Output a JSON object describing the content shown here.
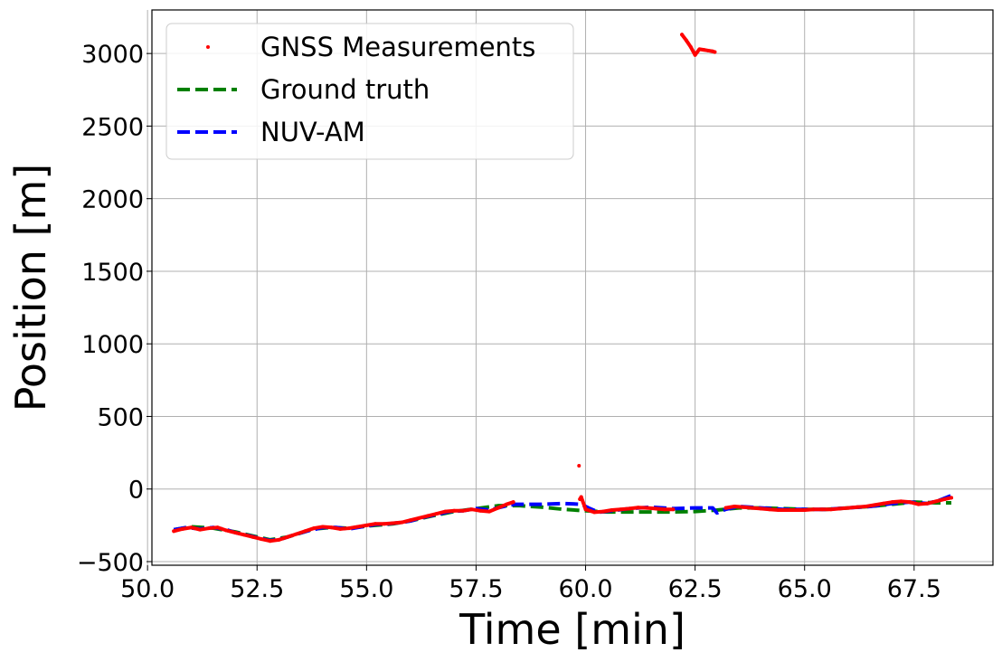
{
  "chart_data": {
    "type": "line",
    "title": "",
    "xlabel": "Time [min]",
    "ylabel": "Position [m]",
    "xlim": [
      50.1,
      69.3
    ],
    "ylim": [
      -525,
      3300
    ],
    "xticks": [
      50.0,
      52.5,
      55.0,
      57.5,
      60.0,
      62.5,
      65.0,
      67.5
    ],
    "xtick_labels": [
      "50.0",
      "52.5",
      "55.0",
      "57.5",
      "60.0",
      "62.5",
      "65.0",
      "67.5"
    ],
    "yticks": [
      -500,
      0,
      500,
      1000,
      1500,
      2000,
      2500,
      3000
    ],
    "ytick_labels": [
      "−500",
      "0",
      "500",
      "1000",
      "1500",
      "2000",
      "2500",
      "3000"
    ],
    "grid": true,
    "legend_position": "top-left",
    "series": [
      {
        "name": "GNSS Measurements",
        "style": "points",
        "color": "#ff0000",
        "x": [
          50.6,
          50.8,
          51.0,
          51.2,
          51.4,
          51.6,
          51.8,
          52.0,
          52.2,
          52.4,
          52.6,
          52.8,
          53.0,
          53.2,
          53.4,
          53.6,
          53.8,
          54.0,
          54.2,
          54.4,
          54.6,
          54.8,
          55.0,
          55.2,
          55.4,
          55.6,
          55.8,
          56.0,
          56.2,
          56.4,
          56.6,
          56.8,
          57.0,
          57.2,
          57.4,
          57.6,
          57.8,
          58.0,
          58.2,
          58.35,
          59.85,
          59.87,
          59.9,
          60.0,
          60.2,
          60.4,
          60.6,
          60.8,
          61.0,
          61.2,
          61.4,
          61.6,
          61.8,
          62.0,
          62.2,
          62.3,
          62.4,
          62.5,
          62.6,
          62.7,
          62.8,
          62.9,
          62.95,
          63.2,
          63.4,
          63.6,
          63.8,
          64.0,
          64.2,
          64.4,
          64.6,
          64.8,
          65.0,
          65.2,
          65.4,
          65.6,
          65.8,
          66.0,
          66.2,
          66.4,
          66.6,
          66.8,
          67.0,
          67.2,
          67.4,
          67.6,
          67.8,
          68.0,
          68.2,
          68.35
        ],
        "y": [
          -290,
          -275,
          -265,
          -280,
          -270,
          -265,
          -285,
          -300,
          -315,
          -330,
          -345,
          -358,
          -350,
          -330,
          -310,
          -290,
          -270,
          -260,
          -265,
          -275,
          -270,
          -260,
          -250,
          -240,
          -240,
          -235,
          -230,
          -215,
          -200,
          -185,
          -170,
          -155,
          -150,
          -150,
          -140,
          -150,
          -155,
          -130,
          -105,
          -90,
          160,
          -70,
          -55,
          -140,
          -160,
          -155,
          -145,
          -140,
          -135,
          -128,
          -130,
          -135,
          -140,
          -140,
          3130,
          3090,
          3045,
          2990,
          3030,
          3025,
          3020,
          3015,
          3010,
          -130,
          -120,
          -125,
          -130,
          -135,
          -140,
          -145,
          -145,
          -145,
          -145,
          -140,
          -140,
          -140,
          -135,
          -130,
          -125,
          -120,
          -110,
          -100,
          -90,
          -85,
          -90,
          -105,
          -100,
          -85,
          -70,
          -60
        ]
      },
      {
        "name": "Ground truth",
        "style": "dashed",
        "color": "#008000",
        "x": [
          50.6,
          51.0,
          51.5,
          52.0,
          52.5,
          52.8,
          53.2,
          53.8,
          54.2,
          54.6,
          55.0,
          55.6,
          56.0,
          56.5,
          57.0,
          57.5,
          58.0,
          58.5,
          59.0,
          59.5,
          60.0,
          60.5,
          61.0,
          61.5,
          62.0,
          62.5,
          63.0,
          63.5,
          64.0,
          64.5,
          65.0,
          65.5,
          66.0,
          66.5,
          67.0,
          67.5,
          68.0,
          68.35
        ],
        "y": [
          -280,
          -260,
          -270,
          -295,
          -330,
          -350,
          -330,
          -275,
          -265,
          -270,
          -255,
          -240,
          -220,
          -185,
          -155,
          -135,
          -115,
          -115,
          -125,
          -140,
          -150,
          -158,
          -158,
          -158,
          -158,
          -155,
          -145,
          -130,
          -130,
          -135,
          -140,
          -140,
          -130,
          -120,
          -105,
          -90,
          -95,
          -95
        ]
      },
      {
        "name": "NUV-AM",
        "style": "dashed",
        "color": "#0000ff",
        "x": [
          50.6,
          50.9,
          51.2,
          51.5,
          51.8,
          52.0,
          52.3,
          52.5,
          52.8,
          53.1,
          53.4,
          53.7,
          54.0,
          54.3,
          54.6,
          54.9,
          55.2,
          55.5,
          55.8,
          56.0,
          56.3,
          56.6,
          56.9,
          57.2,
          57.5,
          57.8,
          58.0,
          58.2,
          58.4,
          59.0,
          59.5,
          59.9,
          60.1,
          60.3,
          60.6,
          61.0,
          61.5,
          62.0,
          62.5,
          62.9,
          63.0,
          63.2,
          63.5,
          64.0,
          64.5,
          65.0,
          65.5,
          66.0,
          66.5,
          67.0,
          67.4,
          67.8,
          68.1,
          68.35
        ],
        "y": [
          -280,
          -265,
          -275,
          -265,
          -280,
          -300,
          -320,
          -335,
          -355,
          -340,
          -310,
          -285,
          -265,
          -265,
          -275,
          -260,
          -245,
          -240,
          -230,
          -220,
          -195,
          -175,
          -155,
          -150,
          -135,
          -145,
          -130,
          -115,
          -105,
          -105,
          -100,
          -105,
          -135,
          -160,
          -150,
          -135,
          -125,
          -135,
          -130,
          -130,
          -165,
          -140,
          -120,
          -130,
          -140,
          -140,
          -140,
          -130,
          -120,
          -100,
          -90,
          -100,
          -75,
          -45
        ]
      }
    ]
  }
}
